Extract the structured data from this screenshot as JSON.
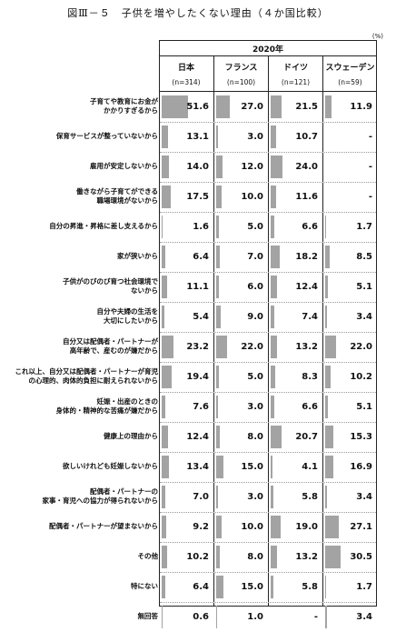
{
  "title": "図Ⅲ－５　子供を増やしたくない理由（４か国比較）",
  "unit": "(%)",
  "chart_data": {
    "type": "table",
    "title": "図Ⅲ－５　子供を増やしたくない理由（４か国比較）",
    "year_label": "2020年",
    "unit": "(%)",
    "columns": [
      {
        "name": "日本",
        "n": "(n=314)"
      },
      {
        "name": "フランス",
        "n": "(n=100)"
      },
      {
        "name": "ドイツ",
        "n": "(n=121)"
      },
      {
        "name": "スウェーデン",
        "n": "(n=59)"
      }
    ],
    "rows": [
      {
        "label": "子育てや教育にお金が\nかかりすぎるから",
        "values": [
          51.6,
          27.0,
          21.5,
          11.9
        ],
        "display": [
          "51.6",
          "27.0",
          "21.5",
          "11.9"
        ]
      },
      {
        "label": "保育サービスが整っていないから",
        "values": [
          13.1,
          3.0,
          10.7,
          null
        ],
        "display": [
          "13.1",
          "3.0",
          "10.7",
          "-"
        ]
      },
      {
        "label": "雇用が安定しないから",
        "values": [
          14.0,
          12.0,
          24.0,
          null
        ],
        "display": [
          "14.0",
          "12.0",
          "24.0",
          "-"
        ]
      },
      {
        "label": "働きながら子育てができる\n職場環境がないから",
        "values": [
          17.5,
          10.0,
          11.6,
          null
        ],
        "display": [
          "17.5",
          "10.0",
          "11.6",
          "-"
        ]
      },
      {
        "label": "自分の昇進・昇格に差し支えるから",
        "values": [
          1.6,
          5.0,
          6.6,
          1.7
        ],
        "display": [
          "1.6",
          "5.0",
          "6.6",
          "1.7"
        ]
      },
      {
        "label": "家が狭いから",
        "values": [
          6.4,
          7.0,
          18.2,
          8.5
        ],
        "display": [
          "6.4",
          "7.0",
          "18.2",
          "8.5"
        ]
      },
      {
        "label": "子供がのびのび育つ社会環境で\nないから",
        "values": [
          11.1,
          6.0,
          12.4,
          5.1
        ],
        "display": [
          "11.1",
          "6.0",
          "12.4",
          "5.1"
        ]
      },
      {
        "label": "自分や夫婦の生活を\n大切にしたいから",
        "values": [
          5.4,
          9.0,
          7.4,
          3.4
        ],
        "display": [
          "5.4",
          "9.0",
          "7.4",
          "3.4"
        ]
      },
      {
        "label": "自分又は配偶者・パートナーが\n高年齢で、産むのが嫌だから",
        "values": [
          23.2,
          22.0,
          13.2,
          22.0
        ],
        "display": [
          "23.2",
          "22.0",
          "13.2",
          "22.0"
        ]
      },
      {
        "label": "これ以上、自分又は配偶者・パートナーが育児\nの心理的、肉体的負担に耐えられないから",
        "values": [
          19.4,
          5.0,
          8.3,
          10.2
        ],
        "display": [
          "19.4",
          "5.0",
          "8.3",
          "10.2"
        ]
      },
      {
        "label": "妊娠・出産のときの\n身体的・精神的な苦痛が嫌だから",
        "values": [
          7.6,
          3.0,
          6.6,
          5.1
        ],
        "display": [
          "7.6",
          "3.0",
          "6.6",
          "5.1"
        ]
      },
      {
        "label": "健康上の理由から",
        "values": [
          12.4,
          8.0,
          20.7,
          15.3
        ],
        "display": [
          "12.4",
          "8.0",
          "20.7",
          "15.3"
        ]
      },
      {
        "label": "欲しいけれども妊娠しないから",
        "values": [
          13.4,
          15.0,
          4.1,
          16.9
        ],
        "display": [
          "13.4",
          "15.0",
          "4.1",
          "16.9"
        ]
      },
      {
        "label": "配偶者・パートナーの\n家事・育児への協力が得られないから",
        "values": [
          7.0,
          3.0,
          5.8,
          3.4
        ],
        "display": [
          "7.0",
          "3.0",
          "5.8",
          "3.4"
        ]
      },
      {
        "label": "配偶者・パートナーが望まないから",
        "values": [
          9.2,
          10.0,
          19.0,
          27.1
        ],
        "display": [
          "9.2",
          "10.0",
          "19.0",
          "27.1"
        ]
      },
      {
        "label": "その他",
        "values": [
          10.2,
          8.0,
          13.2,
          30.5
        ],
        "display": [
          "10.2",
          "8.0",
          "13.2",
          "30.5"
        ]
      },
      {
        "label": "特にない",
        "values": [
          6.4,
          15.0,
          5.8,
          1.7
        ],
        "display": [
          "6.4",
          "15.0",
          "5.8",
          "1.7"
        ]
      },
      {
        "label": "無回答",
        "values": [
          0.6,
          1.0,
          null,
          3.4
        ],
        "display": [
          "0.6",
          "1.0",
          "-",
          "3.4"
        ]
      }
    ],
    "bar_color": "#a3a3a3",
    "bar_scale_max": 100
  }
}
